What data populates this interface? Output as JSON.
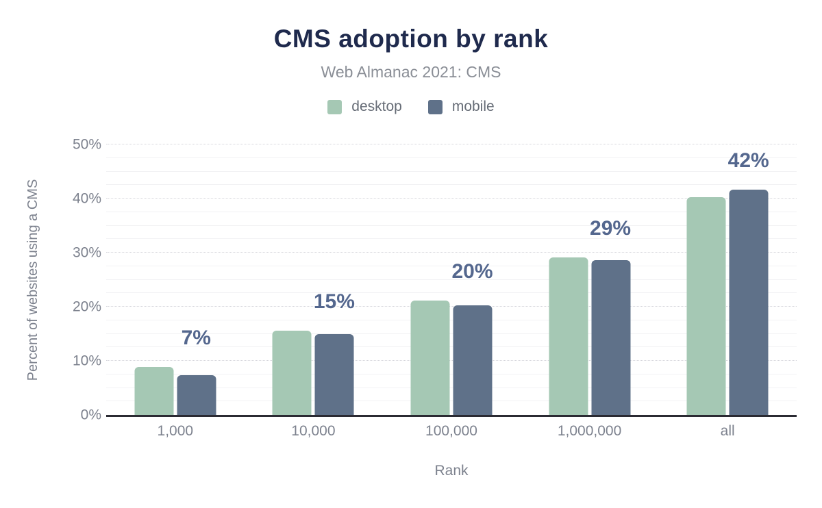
{
  "title": "CMS adoption by rank",
  "subtitle": "Web Almanac 2021: CMS",
  "legend": [
    {
      "label": "desktop",
      "color": "#a5c8b4"
    },
    {
      "label": "mobile",
      "color": "#5f7189"
    }
  ],
  "colors": {
    "title": "#1f2a4d",
    "subtitle": "#8a8e96",
    "axis_text": "#7d828e",
    "value_label": "#54678e",
    "axis_line": "#2b2b33",
    "desktop_bar": "#a5c8b4",
    "mobile_bar": "#5f7189"
  },
  "chart_data": {
    "type": "bar",
    "title": "CMS adoption by rank",
    "subtitle": "Web Almanac 2021: CMS",
    "categories": [
      "1,000",
      "10,000",
      "100,000",
      "1,000,000",
      "all"
    ],
    "series": [
      {
        "name": "desktop",
        "color": "#a5c8b4",
        "values": [
          8.9,
          15.6,
          21.1,
          29.1,
          40.3
        ]
      },
      {
        "name": "mobile",
        "color": "#5f7189",
        "values": [
          7.3,
          14.9,
          20.3,
          28.6,
          41.6
        ]
      }
    ],
    "group_value_labels": [
      "7%",
      "15%",
      "20%",
      "29%",
      "42%"
    ],
    "xlabel": "Rank",
    "ylabel": "Percent of websites using a CMS",
    "ylim": [
      0,
      50
    ],
    "yticks": [
      {
        "value": 0,
        "label": "0%"
      },
      {
        "value": 10,
        "label": "10%"
      },
      {
        "value": 20,
        "label": "20%"
      },
      {
        "value": 30,
        "label": "30%"
      },
      {
        "value": 40,
        "label": "40%"
      },
      {
        "value": 50,
        "label": "50%"
      }
    ],
    "grid": {
      "major_step": 10,
      "minor_step": 2.5,
      "major_style": "dotted",
      "minor_style": "solid"
    },
    "legend_position": "top"
  }
}
